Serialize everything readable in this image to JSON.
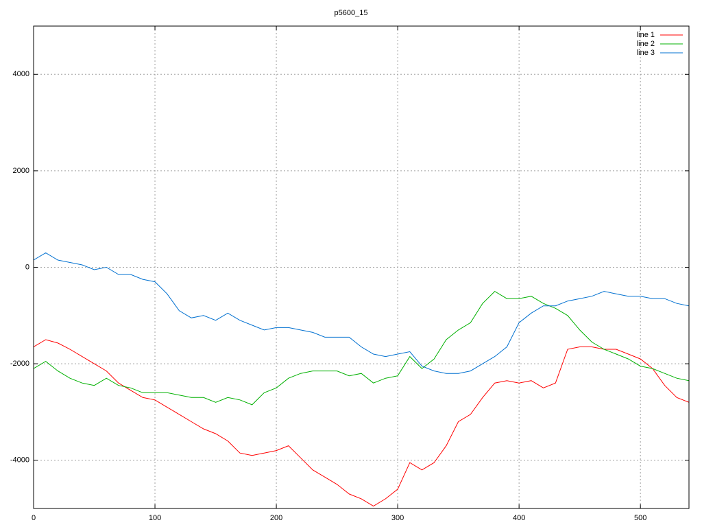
{
  "chart_data": {
    "type": "line",
    "title": "p5600_15",
    "x": [
      0,
      10,
      20,
      30,
      40,
      50,
      60,
      70,
      80,
      90,
      100,
      110,
      120,
      130,
      140,
      150,
      160,
      170,
      180,
      190,
      200,
      210,
      220,
      230,
      240,
      250,
      260,
      270,
      280,
      290,
      300,
      310,
      320,
      330,
      340,
      350,
      360,
      370,
      380,
      390,
      400,
      410,
      420,
      430,
      440,
      450,
      460,
      470,
      480,
      490,
      500,
      510,
      520,
      530,
      540
    ],
    "series": [
      {
        "name": "line 1",
        "color": "#ff0000",
        "values": [
          -1650,
          -1500,
          -1570,
          -1700,
          -1850,
          -2000,
          -2150,
          -2400,
          -2550,
          -2700,
          -2750,
          -2900,
          -3050,
          -3200,
          -3350,
          -3450,
          -3600,
          -3850,
          -3900,
          -3850,
          -3800,
          -3700,
          -3950,
          -4200,
          -4350,
          -4500,
          -4700,
          -4800,
          -4950,
          -4800,
          -4600,
          -4050,
          -4200,
          -4050,
          -3700,
          -3200,
          -3050,
          -2700,
          -2400,
          -2350,
          -2400,
          -2350,
          -2500,
          -2400,
          -1700,
          -1650,
          -1650,
          -1700,
          -1700,
          -1800,
          -1900,
          -2100,
          -2450,
          -2700,
          -2800
        ]
      },
      {
        "name": "line 2",
        "color": "#00b000",
        "values": [
          -2100,
          -1950,
          -2150,
          -2300,
          -2400,
          -2450,
          -2300,
          -2450,
          -2500,
          -2600,
          -2600,
          -2600,
          -2650,
          -2700,
          -2700,
          -2800,
          -2700,
          -2750,
          -2850,
          -2600,
          -2500,
          -2300,
          -2200,
          -2150,
          -2150,
          -2150,
          -2250,
          -2200,
          -2400,
          -2300,
          -2250,
          -1850,
          -2100,
          -1900,
          -1500,
          -1300,
          -1150,
          -750,
          -500,
          -650,
          -650,
          -600,
          -750,
          -850,
          -1000,
          -1300,
          -1550,
          -1700,
          -1800,
          -1900,
          -2050,
          -2100,
          -2200,
          -2300,
          -2350
        ]
      },
      {
        "name": "line 3",
        "color": "#0070d0",
        "values": [
          150,
          300,
          150,
          100,
          50,
          -50,
          0,
          -150,
          -150,
          -250,
          -300,
          -550,
          -900,
          -1050,
          -1000,
          -1100,
          -950,
          -1100,
          -1200,
          -1300,
          -1250,
          -1250,
          -1300,
          -1350,
          -1450,
          -1450,
          -1450,
          -1650,
          -1800,
          -1850,
          -1800,
          -1750,
          -2050,
          -2150,
          -2200,
          -2200,
          -2150,
          -2000,
          -1850,
          -1650,
          -1150,
          -950,
          -800,
          -800,
          -700,
          -650,
          -600,
          -500,
          -550,
          -600,
          -600,
          -650,
          -650,
          -750,
          -800
        ]
      }
    ],
    "xlim": [
      0,
      540
    ],
    "ylim": [
      -5000,
      5000
    ],
    "xticks": [
      0,
      100,
      200,
      300,
      400,
      500
    ],
    "yticks": [
      -4000,
      -2000,
      0,
      2000,
      4000
    ],
    "grid": true,
    "legend": "top-right"
  }
}
